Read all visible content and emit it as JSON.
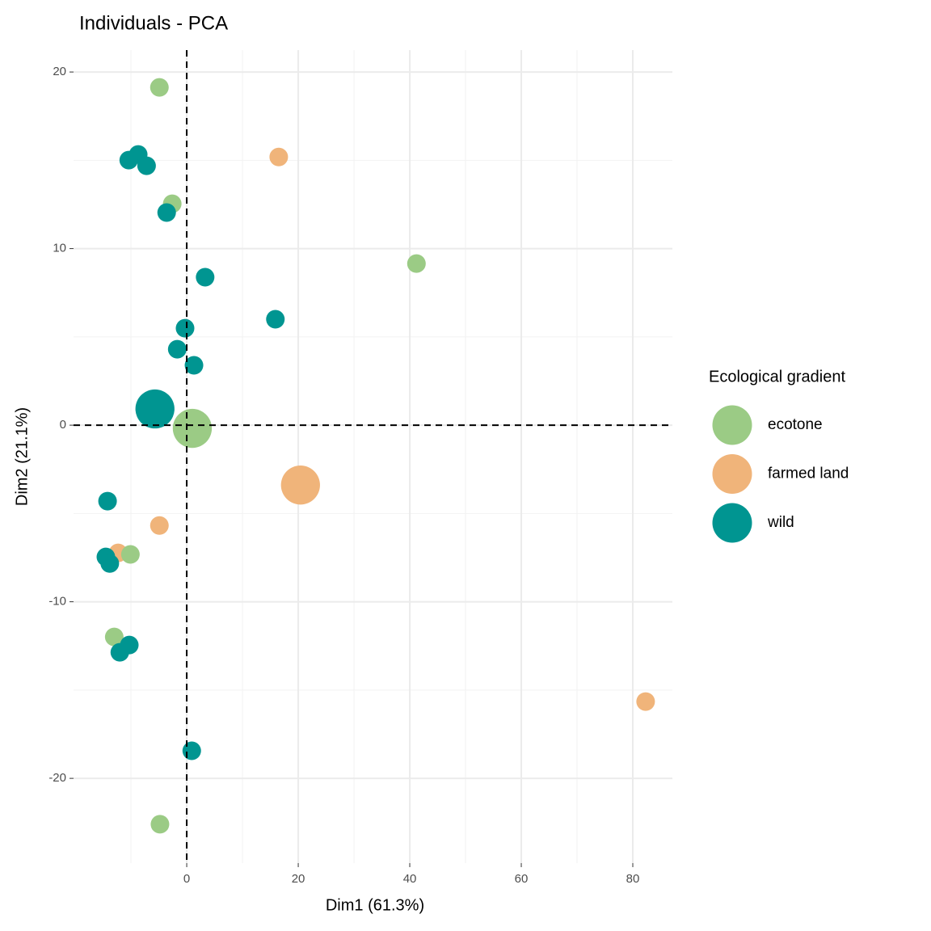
{
  "chart_data": {
    "type": "scatter",
    "title": "Individuals - PCA",
    "x_label": "Dim1 (61.3%)",
    "y_label": "Dim2 (21.1%)",
    "legend_title": "Ecological gradient",
    "xlim": [
      -20.3,
      87.1
    ],
    "ylim": [
      -24.8,
      21.24
    ],
    "xticks": [
      0,
      20,
      40,
      60,
      80
    ],
    "yticks": [
      -20,
      -10,
      0,
      10,
      20
    ],
    "grid": true,
    "minor_grid": true,
    "hline": 0,
    "vline": 0,
    "series": [
      {
        "name": "farmed land",
        "color": "#f0b47a",
        "x": [
          16.5,
          20.4,
          -4.9,
          -12.3,
          82.3
        ],
        "values": [
          15.19,
          -3.39,
          -5.68,
          -7.23,
          -15.65
        ],
        "sizes": [
          1,
          2.1,
          1,
          1,
          1
        ]
      },
      {
        "name": "ecotone",
        "color": "#9bcb85",
        "x": [
          -4.9,
          -2.6,
          41.2,
          1.0,
          -10.1,
          -13.0,
          -4.8
        ],
        "values": [
          19.13,
          12.54,
          9.15,
          -0.18,
          -7.32,
          -11.99,
          -22.6
        ],
        "sizes": [
          1,
          1,
          1,
          2.1,
          1,
          1,
          1
        ]
      },
      {
        "name": "wild",
        "color": "#009591",
        "x": [
          -8.7,
          -10.4,
          -7.2,
          -3.6,
          3.3,
          15.9,
          -0.3,
          -1.7,
          1.3,
          -5.7,
          -14.2,
          -14.5,
          -13.8,
          -10.3,
          -12.0,
          0.9
        ],
        "values": [
          15.33,
          15.01,
          14.69,
          12.04,
          8.38,
          6.0,
          5.49,
          4.3,
          3.39,
          0.92,
          -4.3,
          -7.46,
          -7.83,
          -12.45,
          -12.86,
          -18.44
        ],
        "sizes": [
          1,
          1,
          1,
          1,
          1,
          1,
          1,
          1,
          1,
          2.1,
          1,
          1,
          1,
          1,
          1,
          1
        ]
      }
    ],
    "legend_order": [
      "ecotone",
      "farmed land",
      "wild"
    ]
  }
}
